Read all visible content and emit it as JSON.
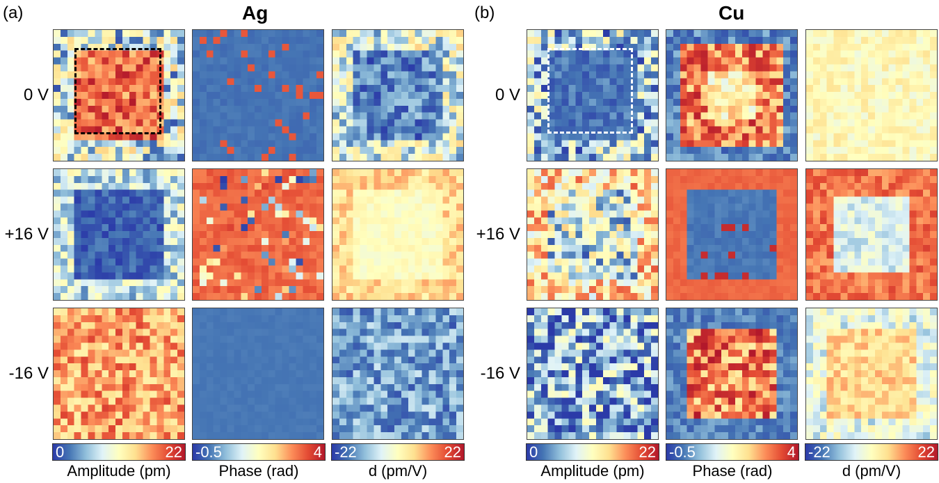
{
  "panels": [
    {
      "id": "a",
      "panel_label": "(a)",
      "title": "Ag",
      "rows": [
        "0 V",
        "+16 V",
        "-16 V"
      ],
      "columns": [
        {
          "colorbar_min": "0",
          "colorbar_max": "22",
          "label": "Amplitude (pm)"
        },
        {
          "colorbar_min": "-0.5",
          "colorbar_max": "4",
          "label": "Phase (rad)"
        },
        {
          "colorbar_min": "-22",
          "colorbar_max": "22",
          "label": "d (pm/V)"
        }
      ]
    },
    {
      "id": "b",
      "panel_label": "(b)",
      "title": "Cu",
      "rows": [
        "0 V",
        "+16 V",
        "-16 V"
      ],
      "columns": [
        {
          "colorbar_min": "0",
          "colorbar_max": "22",
          "label": "Amplitude (pm)"
        },
        {
          "colorbar_min": "-0.5",
          "colorbar_max": "4",
          "label": "Phase (rad)"
        },
        {
          "colorbar_min": "-22",
          "colorbar_max": "22",
          "label": "d (pm/V)"
        }
      ]
    }
  ],
  "colormap": [
    "#2b3aa8",
    "#4575b4",
    "#91bfdb",
    "#e0f3f8",
    "#ffffbf",
    "#fee090",
    "#fc8d59",
    "#e34a33",
    "#b2182b"
  ]
}
